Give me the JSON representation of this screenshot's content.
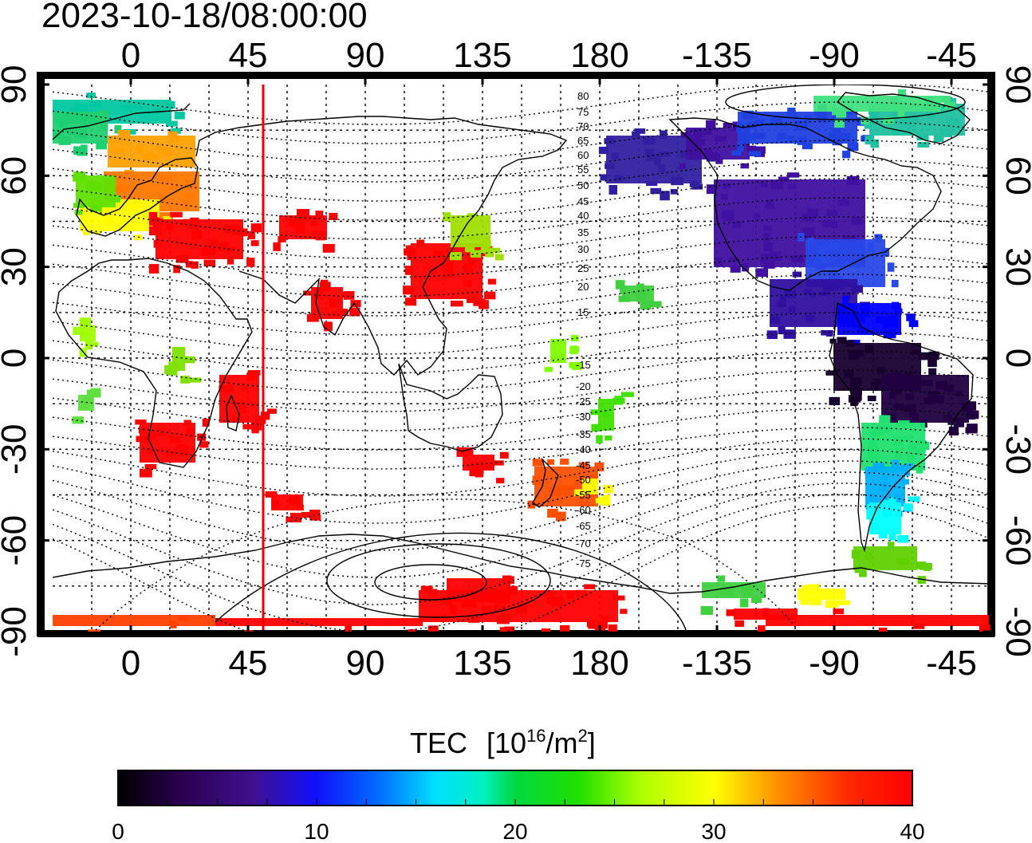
{
  "timestamp": "2023-10-18/08:00:00",
  "colorbar": {
    "title": "TEC",
    "unit_prefix": "[10",
    "unit_exp": "16",
    "unit_mid": "/m",
    "unit_exp2": "2",
    "unit_suffix": "]",
    "ticks": [
      "0",
      "10",
      "20",
      "30",
      "40"
    ],
    "min": 0,
    "max": 40,
    "colors": [
      "#000000",
      "#330066",
      "#4010a0",
      "#0000ff",
      "#0080ff",
      "#00ffff",
      "#00c080",
      "#00e000",
      "#a0ff00",
      "#ffff00",
      "#ff9900",
      "#ff3000",
      "#ff0000"
    ]
  },
  "axes": {
    "top_lon_ticks": [
      "0",
      "45",
      "90",
      "135",
      "180",
      "-135",
      "-90",
      "-45"
    ],
    "bottom_lon_ticks": [
      "0",
      "45",
      "90",
      "135",
      "180",
      "-135",
      "-90",
      "-45"
    ],
    "left_lat_ticks": [
      "90",
      "60",
      "30",
      "0",
      "-30",
      "-60",
      "-90"
    ],
    "right_lat_ticks": [
      "90",
      "60",
      "30",
      "0",
      "-30",
      "-60",
      "-90"
    ]
  },
  "contour_labels": [
    "80",
    "75",
    "70",
    "65",
    "60",
    "55",
    "50",
    "45",
    "40",
    "35",
    "30",
    "25",
    "20",
    "15",
    "-15",
    "-20",
    "-25",
    "-30",
    "-35",
    "-40",
    "-45",
    "-50",
    "-55",
    "-60",
    "-65",
    "-70",
    "-75"
  ],
  "marker": {
    "type": "vertical line",
    "longitude": 60,
    "color": "#ee0000"
  }
}
